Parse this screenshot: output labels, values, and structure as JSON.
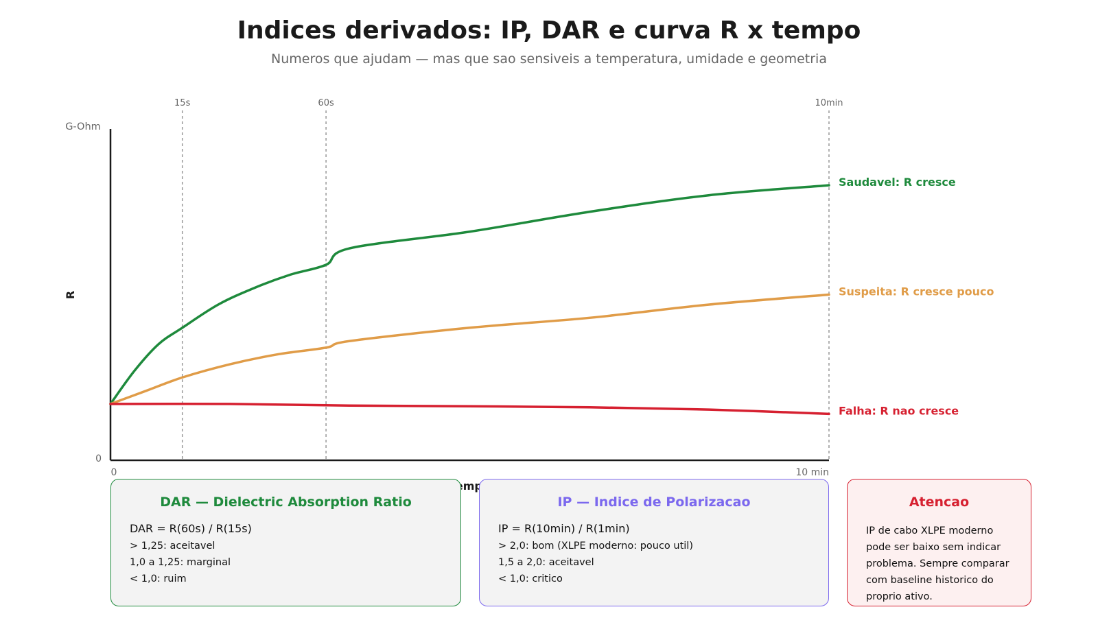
{
  "header": {
    "title": "Indices derivados: IP, DAR e curva R x tempo",
    "subtitle": "Numeros que ajudam — mas que sao sensiveis a temperatura, umidade e geometria"
  },
  "chart_data": {
    "type": "line",
    "xlabel": "Tempo",
    "ylabel": "R",
    "y_unit_label": "G-Ohm",
    "x_tick_labels": [
      "0",
      "10 min"
    ],
    "y_tick_labels": [
      "0"
    ],
    "xlim": [
      0,
      600
    ],
    "x_unit": "s",
    "grid": false,
    "markers": [
      {
        "label": "15s",
        "x": 60
      },
      {
        "label": "60s",
        "x": 180
      },
      {
        "label": "10min",
        "x": 600
      }
    ],
    "series": [
      {
        "name": "Saudavel: R cresce",
        "color": "#1e8a3c",
        "points": [
          [
            0,
            0.17
          ],
          [
            20,
            0.27
          ],
          [
            40,
            0.35
          ],
          [
            60,
            0.4
          ],
          [
            90,
            0.47
          ],
          [
            120,
            0.52
          ],
          [
            150,
            0.56
          ],
          [
            180,
            0.59
          ],
          [
            200,
            0.64
          ],
          [
            300,
            0.69
          ],
          [
            400,
            0.75
          ],
          [
            500,
            0.8
          ],
          [
            600,
            0.83
          ]
        ]
      },
      {
        "name": "Suspeita: R cresce pouco",
        "color": "#e09c48",
        "points": [
          [
            0,
            0.17
          ],
          [
            30,
            0.21
          ],
          [
            60,
            0.25
          ],
          [
            100,
            0.29
          ],
          [
            140,
            0.32
          ],
          [
            180,
            0.34
          ],
          [
            200,
            0.36
          ],
          [
            300,
            0.4
          ],
          [
            400,
            0.43
          ],
          [
            500,
            0.47
          ],
          [
            600,
            0.5
          ]
        ]
      },
      {
        "name": "Falha: R nao cresce",
        "color": "#d62030",
        "points": [
          [
            0,
            0.17
          ],
          [
            100,
            0.17
          ],
          [
            200,
            0.165
          ],
          [
            300,
            0.163
          ],
          [
            400,
            0.16
          ],
          [
            500,
            0.153
          ],
          [
            600,
            0.14
          ]
        ]
      }
    ]
  },
  "cards": {
    "dar": {
      "title": "DAR — Dielectric Absorption Ratio",
      "formula": "DAR = R(60s) / R(15s)",
      "lines": [
        "> 1,25: aceitavel",
        "1,0 a 1,25: marginal",
        "< 1,0: ruim"
      ],
      "color": "#1e8a3c"
    },
    "ip": {
      "title": "IP — Indice de Polarizacao",
      "formula": "IP = R(10min) / R(1min)",
      "lines": [
        "> 2,0: bom (XLPE moderno: pouco util)",
        "1,5 a 2,0: aceitavel",
        "< 1,0: critico"
      ],
      "color": "#7b68ee"
    },
    "warning": {
      "title": "Atencao",
      "body": [
        "IP de cabo XLPE moderno",
        "pode ser baixo sem indicar",
        "problema. Sempre comparar",
        "com baseline historico do",
        "proprio ativo."
      ],
      "color": "#d62030"
    }
  }
}
